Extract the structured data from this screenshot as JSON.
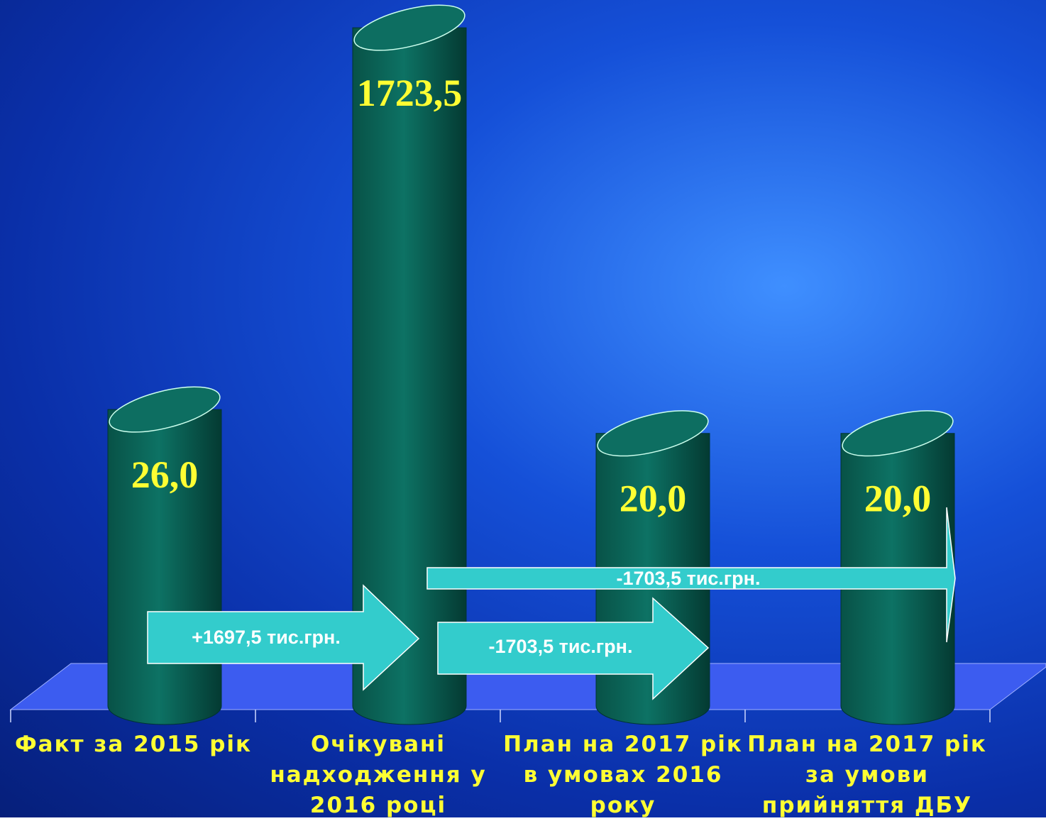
{
  "chart_data": {
    "type": "cylinder-bar",
    "categories": [
      "Факт за 2015 рік",
      "Очікувані надходження у 2016 році",
      "План на 2017 рік в умовах 2016 року",
      "План на 2017 рік за умови прийняття ДБУ"
    ],
    "values": [
      26.0,
      1723.5,
      20.0,
      20.0
    ],
    "value_labels": [
      "26,0",
      "1723,5",
      "20,0",
      "20,0"
    ],
    "color": "#0b6a5e",
    "log_scale": true,
    "ylim": [
      1,
      2000
    ],
    "annotations": [
      "+1697,5 тис.грн.",
      "-1703,5 тис.грн.",
      "-1703,5 тис.грн."
    ]
  }
}
